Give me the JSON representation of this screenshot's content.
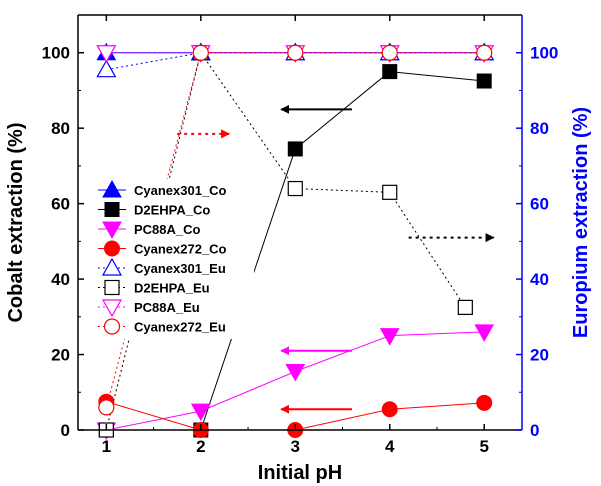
{
  "chart_data": {
    "type": "scatter",
    "xlabel": "Initial pH",
    "ylabel_left": "Cobalt extraction (%)",
    "ylabel_right": "Europium extraction (%)",
    "xlim": [
      0.7,
      5.4
    ],
    "ylim_left": [
      0,
      110
    ],
    "ylim_right": [
      0,
      110
    ],
    "x_ticks": [
      1,
      2,
      3,
      4,
      5
    ],
    "y_ticks_left": [
      0,
      20,
      40,
      60,
      80,
      100
    ],
    "y_ticks_right": [
      0,
      20,
      40,
      60,
      80,
      100
    ],
    "grid": false,
    "legend_position": "left",
    "colors": {
      "left_axis": "#000000",
      "right_axis": "#0000ff",
      "blue": "#0000ff",
      "black": "#000000",
      "magenta": "#ff00ff",
      "red": "#ff0000"
    },
    "series": [
      {
        "name": "Cyanex301_Co",
        "axis": "left",
        "marker": "triangle-up",
        "filled": true,
        "line": "solid",
        "color": "#0000ff",
        "points": [
          [
            1,
            100
          ],
          [
            2,
            100
          ],
          [
            3,
            100
          ],
          [
            4,
            100
          ],
          [
            5,
            100
          ]
        ]
      },
      {
        "name": "D2EHPA_Co",
        "axis": "left",
        "marker": "square",
        "filled": true,
        "line": "solid",
        "color": "#000000",
        "points": [
          [
            1,
            0
          ],
          [
            2,
            0
          ],
          [
            3,
            74.5
          ],
          [
            4,
            95
          ],
          [
            5,
            92.5
          ]
        ]
      },
      {
        "name": "PC88A_Co",
        "axis": "left",
        "marker": "triangle-down",
        "filled": true,
        "line": "solid",
        "color": "#ff00ff",
        "points": [
          [
            1,
            0
          ],
          [
            2,
            5
          ],
          [
            3,
            15.5
          ],
          [
            4,
            25
          ],
          [
            5,
            26
          ]
        ]
      },
      {
        "name": "Cyanex272_Co",
        "axis": "left",
        "marker": "circle",
        "filled": true,
        "line": "solid",
        "color": "#ff0000",
        "points": [
          [
            1,
            7.5
          ],
          [
            2,
            0
          ],
          [
            3,
            0
          ],
          [
            4,
            5.5
          ],
          [
            5,
            7.2
          ]
        ]
      },
      {
        "name": "Cyanex301_Eu",
        "axis": "right",
        "marker": "triangle-up",
        "filled": false,
        "line": "dotted",
        "color": "#0000ff",
        "points": [
          [
            1,
            95.5
          ],
          [
            2,
            100
          ],
          [
            3,
            100
          ],
          [
            4,
            100
          ],
          [
            5,
            100
          ]
        ]
      },
      {
        "name": "D2EHPA_Eu",
        "axis": "right",
        "marker": "square",
        "filled": false,
        "line": "dotted",
        "color": "#000000",
        "points": [
          [
            1,
            0
          ],
          [
            2,
            100
          ],
          [
            3,
            64
          ],
          [
            4,
            63
          ],
          [
            4.8,
            32.5
          ]
        ]
      },
      {
        "name": "PC88A_Eu",
        "axis": "right",
        "marker": "triangle-down",
        "filled": false,
        "line": "dotted",
        "color": "#ff00ff",
        "points": [
          [
            1,
            100
          ],
          [
            2,
            100
          ],
          [
            3,
            100
          ],
          [
            4,
            100
          ],
          [
            5,
            100
          ]
        ]
      },
      {
        "name": "Cyanex272_Eu",
        "axis": "right",
        "marker": "circle",
        "filled": false,
        "line": "dotted",
        "color": "#ff0000",
        "points": [
          [
            1,
            6
          ],
          [
            2,
            100
          ],
          [
            3,
            100
          ],
          [
            4,
            100
          ],
          [
            5,
            100
          ]
        ]
      }
    ],
    "annotations": [
      {
        "type": "arrow",
        "direction": "left",
        "line": "solid",
        "color": "#000000",
        "from": [
          3.6,
          85
        ],
        "to": [
          2.85,
          85
        ]
      },
      {
        "type": "arrow",
        "direction": "right",
        "line": "dotted",
        "color": "#ff0000",
        "from": [
          1.75,
          78.5
        ],
        "to": [
          2.3,
          78.5
        ]
      },
      {
        "type": "arrow",
        "direction": "right",
        "line": "dotted",
        "color": "#000000",
        "from": [
          4.2,
          51
        ],
        "to": [
          5.1,
          51
        ]
      },
      {
        "type": "arrow",
        "direction": "left",
        "line": "solid",
        "color": "#ff00ff",
        "from": [
          3.6,
          21
        ],
        "to": [
          2.85,
          21
        ]
      },
      {
        "type": "arrow",
        "direction": "left",
        "line": "solid",
        "color": "#ff0000",
        "from": [
          3.6,
          5.5
        ],
        "to": [
          2.85,
          5.5
        ]
      }
    ]
  }
}
